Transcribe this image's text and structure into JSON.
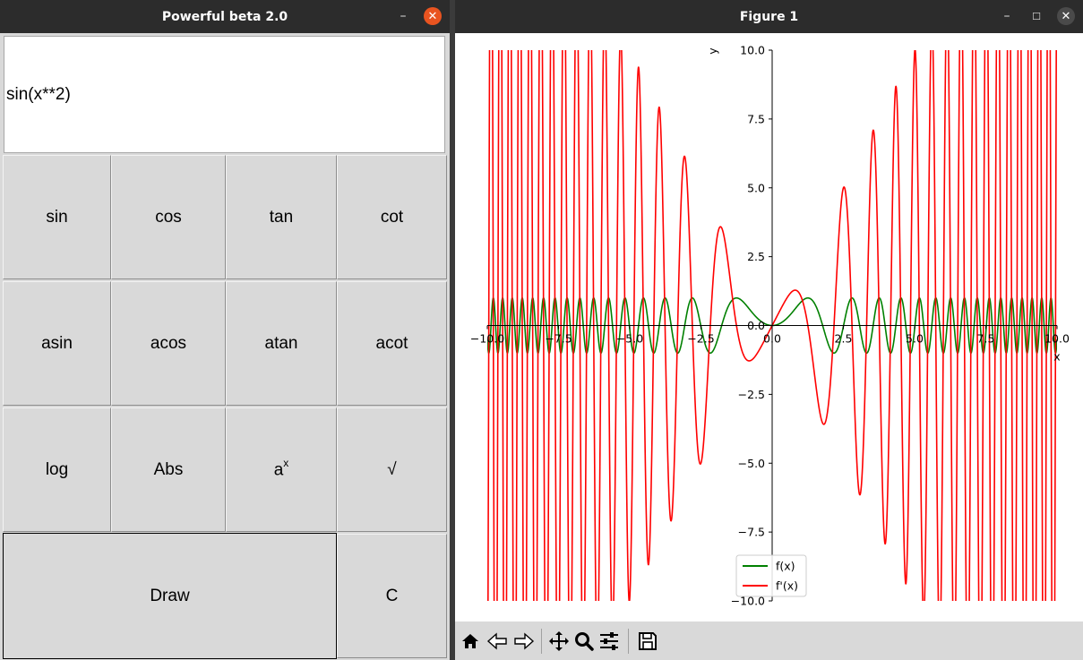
{
  "calculator_window": {
    "title": "Powerful beta 2.0",
    "display_value": "sin(x**2)",
    "keys": {
      "sin": "sin",
      "cos": "cos",
      "tan": "tan",
      "cot": "cot",
      "asin": "asin",
      "acos": "acos",
      "atan": "atan",
      "acot": "acot",
      "log": "log",
      "abs": "Abs",
      "pow_base": "a",
      "pow_exp": "x",
      "sqrt": "√",
      "draw": "Draw",
      "clear": "C"
    }
  },
  "figure_window": {
    "title": "Figure 1",
    "toolbar_icons": [
      "home-icon",
      "back-arrow-icon",
      "forward-arrow-icon",
      "pan-icon",
      "zoom-icon",
      "configure-subplots-icon",
      "save-icon"
    ]
  },
  "colors": {
    "f": "#008000",
    "fprime": "#ff0000",
    "accent_close": "#e95420",
    "titlebar": "#2c2c2c"
  },
  "chart_data": {
    "type": "line",
    "title": "",
    "xlabel": "x",
    "ylabel": "y",
    "xlim": [
      -10,
      10
    ],
    "ylim": [
      -10,
      10
    ],
    "spines": "centered at origin",
    "grid": false,
    "legend_position": "lower-left",
    "xticks": [
      -10.0,
      -7.5,
      -5.0,
      -2.5,
      0.0,
      2.5,
      5.0,
      7.5,
      10.0
    ],
    "yticks": [
      -10.0,
      -7.5,
      -5.0,
      -2.5,
      0.0,
      2.5,
      5.0,
      7.5,
      10.0
    ],
    "xtick_labels": [
      "−10.0",
      "−7.5",
      "−5.0",
      "−2.5",
      "0.0",
      "2.5",
      "5.0",
      "7.5",
      "10.0"
    ],
    "ytick_labels": [
      "−10.0",
      "−7.5",
      "−5.0",
      "−2.5",
      "0.0",
      "2.5",
      "5.0",
      "7.5",
      "10.0"
    ],
    "series": [
      {
        "name": "f(x)",
        "expression": "sin(x**2)",
        "color": "#008000"
      },
      {
        "name": "f'(x)",
        "expression": "2*x*cos(x**2)",
        "color": "#ff0000"
      }
    ]
  }
}
